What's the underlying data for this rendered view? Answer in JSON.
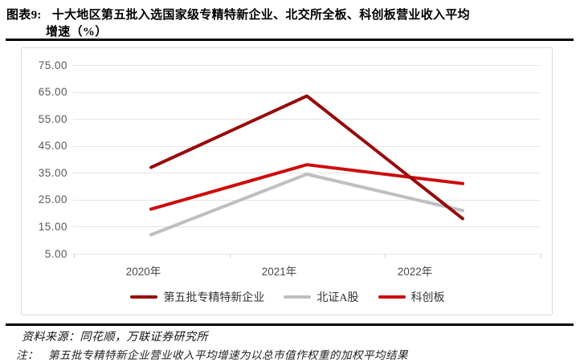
{
  "figure": {
    "label": "图表9:",
    "title_line1": "十大地区第五批入选国家级专精特新企业、北交所全板、科创板营业收入平均",
    "title_line2": "增速（%）"
  },
  "chart_data": {
    "type": "line",
    "categories": [
      "2020年",
      "2021年",
      "2022年"
    ],
    "series": [
      {
        "name": "第五批专精特新企业",
        "color": "#970A0A",
        "values": [
          37,
          63.5,
          18
        ]
      },
      {
        "name": "北证A股",
        "color": "#BFBFBF",
        "values": [
          12,
          34.5,
          21
        ]
      },
      {
        "name": "科创板",
        "color": "#CE0B0B",
        "values": [
          21.5,
          38,
          31
        ]
      }
    ],
    "ylim": [
      5,
      75
    ],
    "ytick_step": 10,
    "yticks": [
      "75.00",
      "65.00",
      "55.00",
      "45.00",
      "35.00",
      "25.00",
      "15.00",
      "5.00"
    ],
    "grid": "horizontal",
    "legend_position": "bottom",
    "draw_order": [
      1,
      2,
      0
    ]
  },
  "footer": {
    "source": "资料来源：同花顺，万联证券研究所",
    "note_label": "注：",
    "note": "第五批专精特新企业营业收入平均增速为以总市值作权重的加权平均结果"
  }
}
